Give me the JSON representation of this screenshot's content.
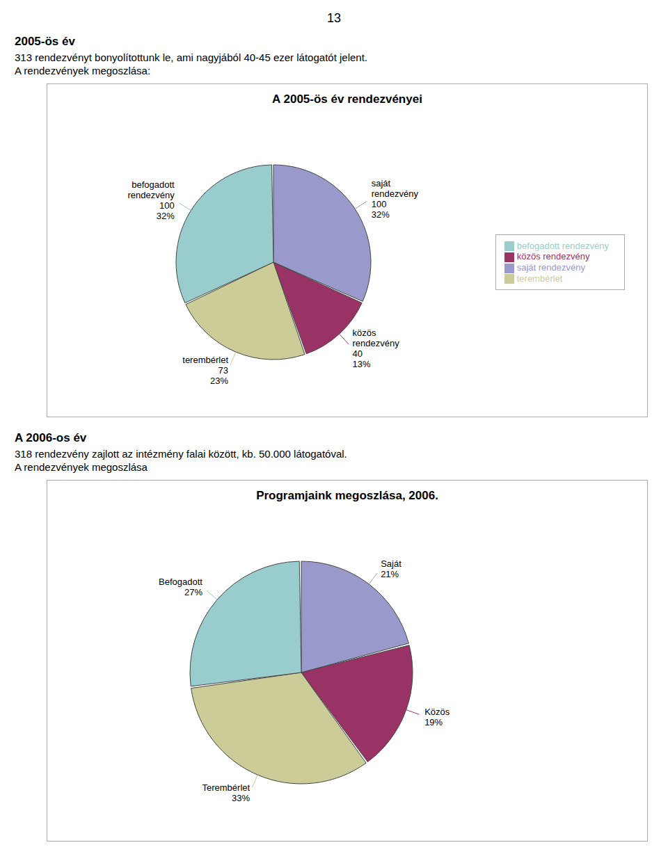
{
  "page_number": "13",
  "chart_data": [
    {
      "type": "pie",
      "title": "A 2005-ös év rendezvényei",
      "annotations": [
        "2005-ös év",
        "313 rendezvényt bonyolítottunk le, ami nagyjából 40-45 ezer látogatót jelent.",
        "A rendezvények megoszlása:"
      ],
      "categories": [
        "saját rendezvény",
        "közös rendezvény",
        "terembérlet",
        "befogadott rendezvény"
      ],
      "values": [
        100,
        40,
        73,
        100
      ],
      "share_labels": [
        "32%",
        "13%",
        "23%",
        "32%"
      ],
      "colors": [
        "#9999cc",
        "#993366",
        "#cccc99",
        "#99cccc"
      ],
      "data_labels": true,
      "legend": "right"
    },
    {
      "type": "pie",
      "title": "Programjaink megoszlása, 2006.",
      "annotations": [
        "A 2006-os év",
        "318 rendezvény zajlott az intézmény falai között, kb. 50.000 látogatóval.",
        "A rendezvények megoszlása"
      ],
      "categories": [
        "Saját",
        "Közös",
        "Terembérlet",
        "Befogadott"
      ],
      "values": [
        21,
        19,
        33,
        27
      ],
      "value_labels": [
        "21%",
        "19%",
        "33%",
        "27%"
      ],
      "colors": [
        "#9999cc",
        "#993366",
        "#cccc99",
        "#99cccc"
      ],
      "data_labels": true
    }
  ]
}
